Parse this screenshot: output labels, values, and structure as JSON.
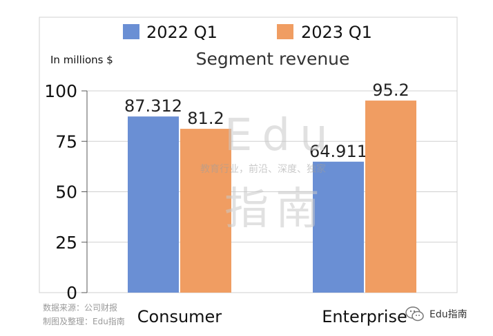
{
  "chart_data": {
    "type": "bar",
    "title": "Segment revenue",
    "ylabel": "In millions $",
    "categories": [
      "Consumer",
      "Enterprise"
    ],
    "series": [
      {
        "name": "2022 Q1",
        "values": [
          87.312,
          64.911
        ],
        "labels": [
          "87.312",
          "64.911"
        ],
        "color": "#6a8fd4"
      },
      {
        "name": "2023 Q1",
        "values": [
          81.2,
          95.2
        ],
        "labels": [
          "81.2",
          "95.2"
        ],
        "color": "#f09d62"
      }
    ],
    "ylim": [
      0,
      100
    ],
    "yticks": [
      0,
      25,
      50,
      75,
      100
    ],
    "grid": true,
    "legend": "top"
  },
  "watermark": {
    "brand": "Edu",
    "tagline": "教育行业，前沿、深度、独家",
    "chars": "指南"
  },
  "source": {
    "line1": "数据来源：公司财报",
    "line2": "制图及整理：Edu指南"
  },
  "account": {
    "name": "Edu指南",
    "icon": "wechat-icon"
  }
}
